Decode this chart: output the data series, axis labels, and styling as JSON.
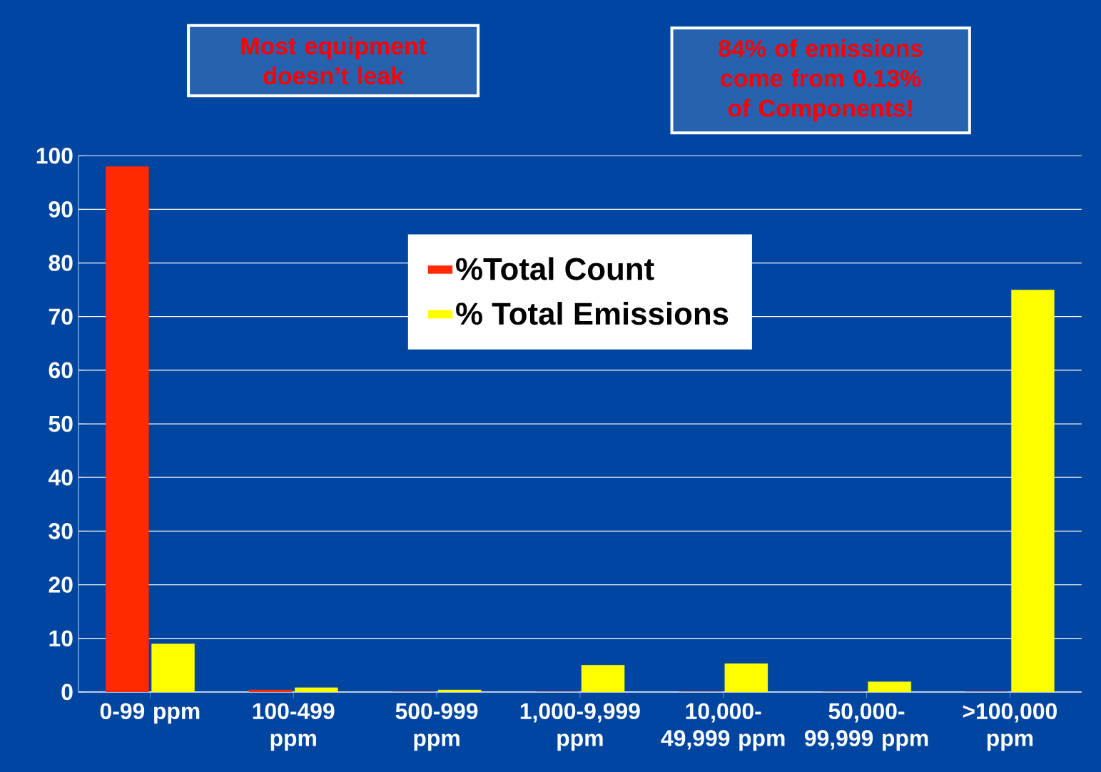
{
  "chart_data": {
    "type": "bar",
    "categories": [
      "0-99 ppm",
      "100-499 ppm",
      "500-999 ppm",
      "1,000-9,999 ppm",
      "10,000-49,999 ppm",
      "50,000-99,999 ppm",
      ">100,000 ppm"
    ],
    "series": [
      {
        "name": "%Total Count",
        "color": "#ff2a00",
        "values": [
          98,
          0.4,
          0,
          0,
          0,
          0,
          0
        ]
      },
      {
        "name": "% Total Emissions",
        "color": "#ffff00",
        "values": [
          9,
          0.8,
          0.4,
          5,
          5.3,
          1.9,
          75
        ]
      }
    ],
    "ylim": [
      0,
      100
    ],
    "yticks": [
      0,
      10,
      20,
      30,
      40,
      50,
      60,
      70,
      80,
      90,
      100
    ],
    "grid": "y",
    "legend": "top",
    "annotations": [
      "Most equipment doesn’t leak",
      "84% of emissions come from 0.13% of Components!"
    ]
  }
}
